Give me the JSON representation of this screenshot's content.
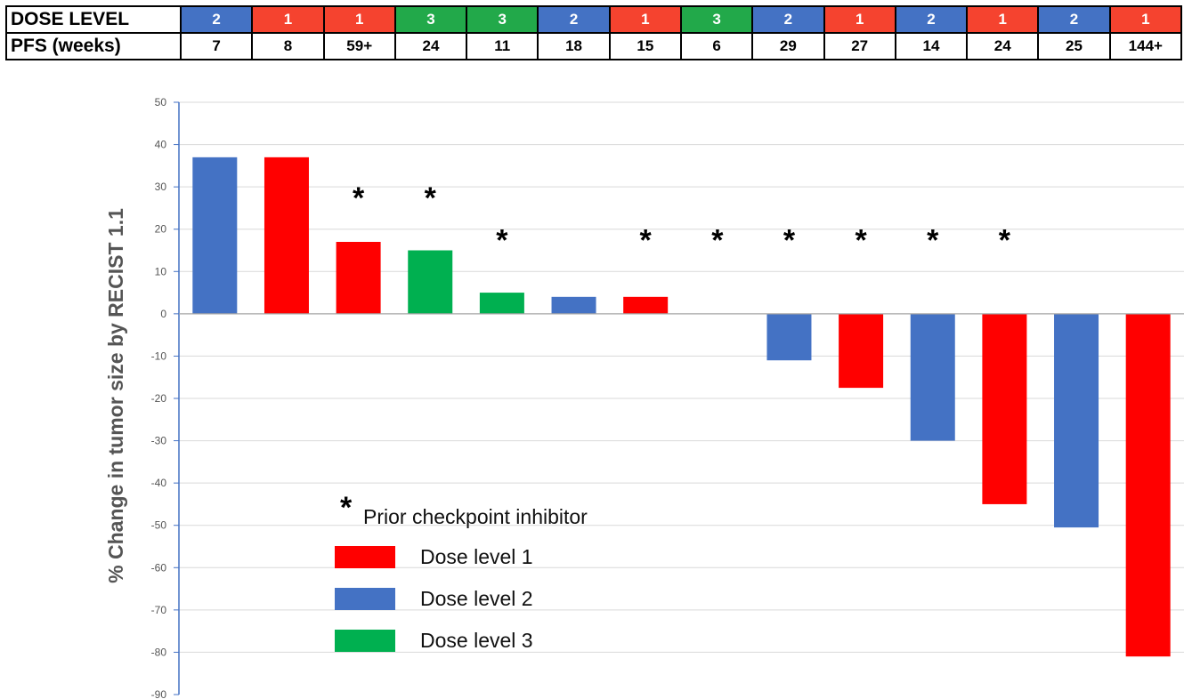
{
  "table": {
    "dose_label": "DOSE LEVEL",
    "pfs_label": "PFS (weeks)",
    "dose_levels": [
      "2",
      "1",
      "1",
      "3",
      "3",
      "2",
      "1",
      "3",
      "2",
      "1",
      "2",
      "1",
      "2",
      "1"
    ],
    "pfs": [
      "7",
      "8",
      "59+",
      "24",
      "11",
      "18",
      "15",
      "6",
      "29",
      "27",
      "14",
      "24",
      "25",
      "144+"
    ]
  },
  "colors": {
    "1": "#f5432f",
    "2": "#4472c4",
    "3": "#22a94a"
  },
  "bar_colors": {
    "1": "#ff0000",
    "2": "#4472c4",
    "3": "#00b050"
  },
  "chart_data": {
    "type": "bar",
    "ylabel": "% Change in tumor size by RECIST 1.1",
    "ylim": [
      -90,
      50
    ],
    "yticks": [
      50,
      40,
      30,
      20,
      10,
      0,
      -10,
      -20,
      -30,
      -40,
      -50,
      -60,
      -70,
      -80,
      -90
    ],
    "values": [
      37,
      37,
      17,
      15,
      5,
      4,
      4,
      0,
      -11,
      -17.5,
      -30,
      -45,
      -50.5,
      -81
    ],
    "dose_level": [
      "2",
      "1",
      "1",
      "3",
      "3",
      "2",
      "1",
      "3",
      "2",
      "1",
      "2",
      "1",
      "2",
      "1"
    ],
    "prior_checkpoint_inhibitor": [
      false,
      false,
      true,
      true,
      true,
      false,
      true,
      true,
      true,
      true,
      true,
      true,
      false,
      false
    ],
    "grid": true,
    "legend": {
      "placement": "bottom-left",
      "asterisk_label": "Prior checkpoint inhibitor",
      "asterisk_symbol": "*",
      "entries": [
        {
          "label": "Dose level 1",
          "level": "1"
        },
        {
          "label": "Dose level 2",
          "level": "2"
        },
        {
          "label": "Dose level 3",
          "level": "3"
        }
      ]
    }
  }
}
